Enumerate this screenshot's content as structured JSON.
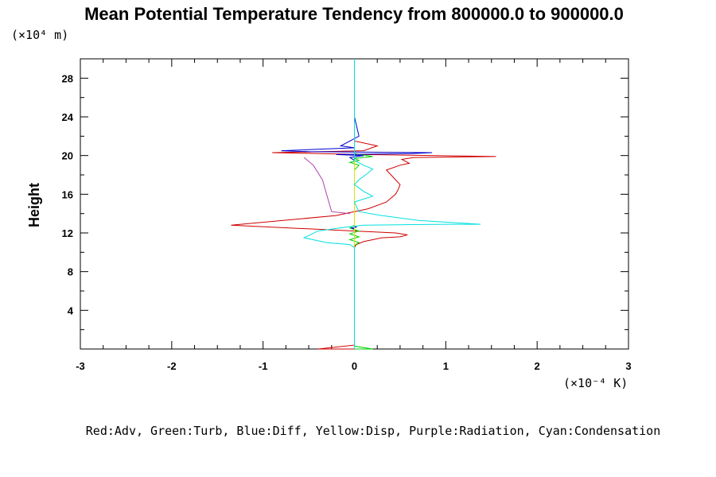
{
  "chart_data": {
    "type": "line",
    "title": "Mean Potential Temperature Tendency from 800000.0 to 900000.0",
    "ylabel": "Height",
    "y_unit": "(×10⁴ m)",
    "x_unit": "(×10⁻⁴ K)",
    "xlim": [
      -3,
      3
    ],
    "ylim": [
      0,
      30
    ],
    "x_ticks": [
      "-3",
      "-2",
      "-1",
      "0",
      "1",
      "2",
      "3"
    ],
    "y_ticks": [
      "4",
      "8",
      "12",
      "16",
      "20",
      "24",
      "28"
    ],
    "legend_text": "Red:Adv, Green:Turb, Blue:Diff, Yellow:Disp, Purple:Radiation, Cyan:Condensation",
    "series": [
      {
        "name": "Adv",
        "color": "#d00000",
        "x": [
          0.0,
          -0.4,
          0.0,
          0.0,
          0.02,
          0.1,
          0.3,
          0.5,
          0.58,
          0.45,
          -1.35,
          -0.2,
          0.15,
          0.35,
          0.45,
          0.48,
          0.5,
          0.45,
          0.35,
          0.5,
          0.6,
          0.52,
          0.65,
          1.55,
          0.1,
          -0.9,
          0.1,
          0.25,
          0.0,
          0.0
        ],
        "y": [
          0.0,
          0.0,
          0.4,
          10.5,
          10.8,
          11.1,
          11.5,
          11.6,
          11.8,
          12.0,
          12.8,
          13.8,
          14.5,
          15.2,
          16.0,
          16.5,
          17.0,
          17.5,
          18.5,
          19.0,
          19.2,
          19.6,
          19.8,
          19.9,
          20.1,
          20.3,
          20.5,
          21.0,
          21.5,
          30.0
        ]
      },
      {
        "name": "Turb",
        "color": "#00d000",
        "x": [
          0.0,
          0.2,
          0.0,
          0.0,
          0.05,
          -0.05,
          0.05,
          -0.05,
          0.05,
          -0.05,
          0.0,
          0.0,
          0.05,
          -0.05,
          0.05,
          0.0,
          0.1,
          0.2,
          0.0,
          0.0
        ],
        "y": [
          0.0,
          0.0,
          0.3,
          10.7,
          11.0,
          11.3,
          11.6,
          11.9,
          12.2,
          12.5,
          12.8,
          18.5,
          19.0,
          19.3,
          19.5,
          19.7,
          19.8,
          19.9,
          20.2,
          30.0
        ]
      },
      {
        "name": "Diff",
        "color": "#0000d0",
        "x": [
          0.0,
          0.0,
          -0.03,
          0.02,
          0.0,
          0.0,
          -0.05,
          0.1,
          -0.2,
          0.6,
          0.85,
          -0.5,
          -0.8,
          0.0,
          -0.15,
          0.05,
          0.0,
          0.0
        ],
        "y": [
          0.0,
          12.4,
          12.5,
          12.6,
          12.7,
          19.5,
          19.8,
          20.0,
          20.1,
          20.2,
          20.3,
          20.4,
          20.5,
          20.8,
          21.0,
          22.0,
          24.0,
          30.0
        ]
      },
      {
        "name": "Disp",
        "color": "#e0e000",
        "x": [
          0.0,
          0.0,
          0.0
        ],
        "y": [
          0.0,
          14.0,
          20.0
        ]
      },
      {
        "name": "Radiation",
        "color": "#b040b0",
        "x": [
          -0.55,
          -0.45,
          -0.35,
          -0.25,
          -0.05
        ],
        "y": [
          19.8,
          19.0,
          17.5,
          14.2,
          14.0
        ]
      },
      {
        "name": "Condensation",
        "color": "#00e0e0",
        "x": [
          0.0,
          0.0,
          -0.05,
          -0.3,
          -0.55,
          -0.4,
          -0.1,
          0.1,
          0.5,
          1.0,
          1.38,
          0.7,
          0.3,
          0.05,
          0.02,
          0.0,
          0.1,
          0.2,
          0.1,
          0.0,
          0.05,
          0.15,
          0.2,
          0.1,
          0.0,
          0.0
        ],
        "y": [
          0.0,
          10.5,
          10.8,
          11.0,
          11.5,
          12.2,
          12.6,
          12.8,
          12.85,
          12.9,
          12.9,
          13.3,
          13.8,
          14.2,
          14.8,
          15.2,
          15.5,
          15.8,
          16.3,
          17.0,
          17.5,
          18.2,
          18.6,
          19.0,
          19.5,
          30.0
        ]
      }
    ]
  }
}
